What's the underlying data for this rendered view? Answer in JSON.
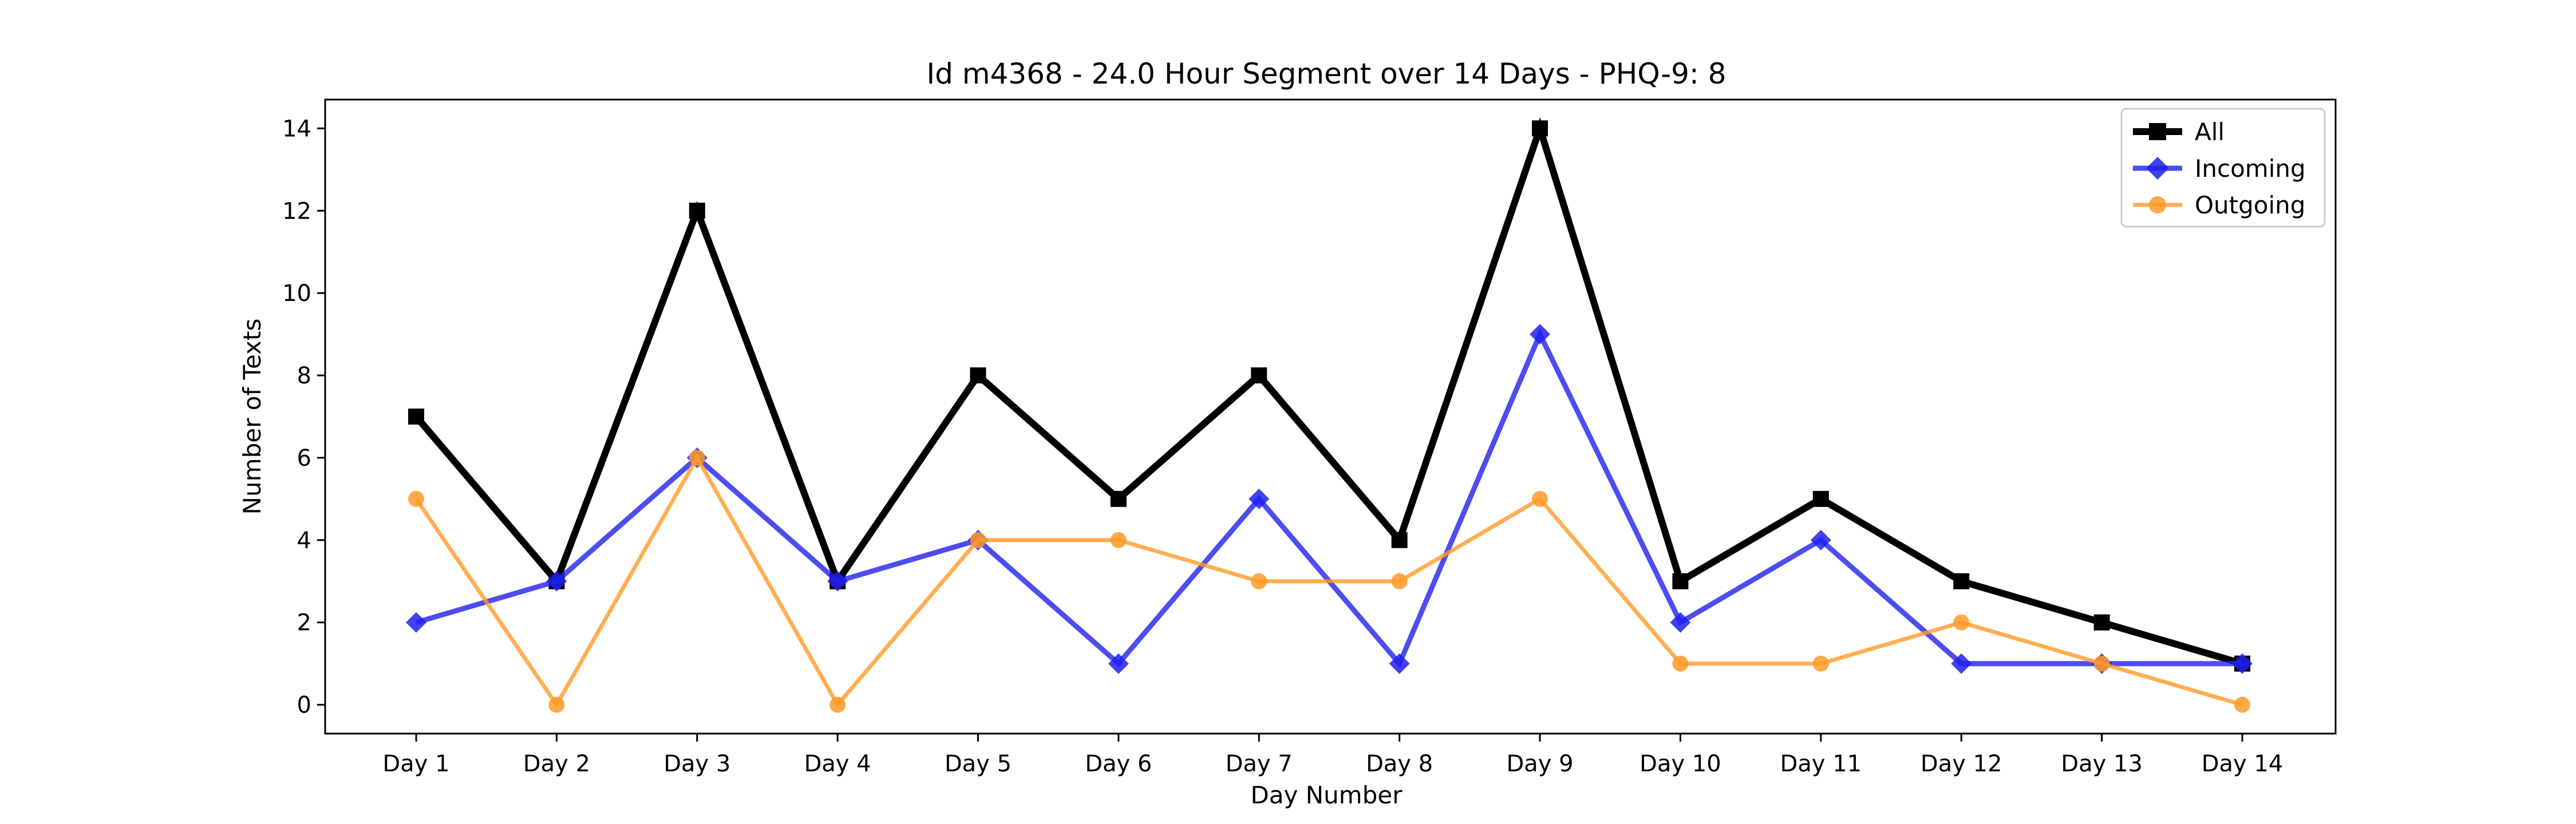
{
  "chart_data": {
    "type": "line",
    "title": "Id m4368 - 24.0 Hour Segment over 14 Days - PHQ-9: 8",
    "xlabel": "Day Number",
    "ylabel": "Number of Texts",
    "categories": [
      "Day 1",
      "Day 2",
      "Day 3",
      "Day 4",
      "Day 5",
      "Day 6",
      "Day 7",
      "Day 8",
      "Day 9",
      "Day 10",
      "Day 11",
      "Day 12",
      "Day 13",
      "Day 14"
    ],
    "ylim": [
      -0.7,
      14.7
    ],
    "yticks": [
      0,
      2,
      4,
      6,
      8,
      10,
      12,
      14
    ],
    "grid": false,
    "legend_position": "top-right",
    "series": [
      {
        "name": "All",
        "color": "#000000",
        "marker": "square",
        "values": [
          7,
          3,
          12,
          3,
          8,
          5,
          8,
          4,
          14,
          3,
          5,
          3,
          2,
          1
        ]
      },
      {
        "name": "Incoming",
        "color": "#2020ee",
        "marker": "diamond",
        "values": [
          2,
          3,
          6,
          3,
          4,
          1,
          5,
          1,
          9,
          2,
          4,
          1,
          1,
          1
        ]
      },
      {
        "name": "Outgoing",
        "color": "#ff9a28",
        "marker": "circle",
        "values": [
          5,
          0,
          6,
          0,
          4,
          4,
          3,
          3,
          5,
          1,
          1,
          2,
          1,
          0
        ]
      }
    ]
  }
}
